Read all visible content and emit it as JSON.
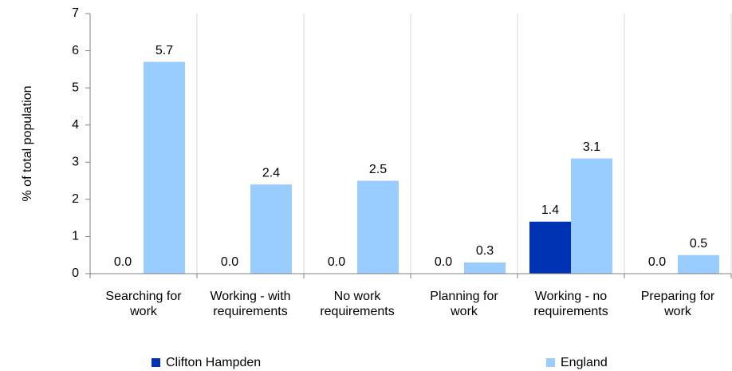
{
  "chart_data": {
    "type": "bar",
    "y_label": "% of total population",
    "categories": [
      "Searching for\nwork",
      "Working - with\nrequirements",
      "No work\nrequirements",
      "Planning for\nwork",
      "Working - no\nrequirements",
      "Preparing for\nwork"
    ],
    "series": [
      {
        "name": "Clifton Hampden",
        "color": "#0033b3",
        "values": [
          0,
          0,
          0,
          0,
          1.4,
          0
        ],
        "value_labels": [
          "0.0",
          "0.0",
          "0.0",
          "0.0",
          "1.4",
          "0.0"
        ]
      },
      {
        "name": "England",
        "color": "#99ccff",
        "values": [
          5.7,
          2.4,
          2.5,
          0.3,
          3.1,
          0.5
        ],
        "value_labels": [
          "5.7",
          "2.4",
          "2.5",
          "0.3",
          "3.1",
          "0.5"
        ]
      }
    ],
    "ylim": [
      0,
      7
    ],
    "yticks": [
      0,
      1,
      2,
      3,
      4,
      5,
      6,
      7
    ],
    "grid": true,
    "legend": "bottom"
  }
}
